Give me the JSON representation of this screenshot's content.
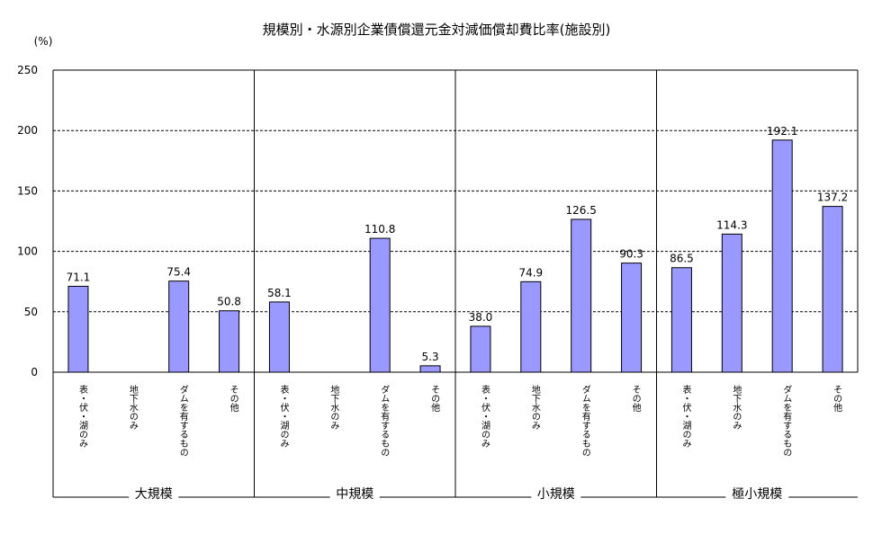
{
  "chart_data": {
    "type": "bar",
    "title": "規模別・水源別企業債償還元金対減価償却費比率(施設別)",
    "ylabel": "(%)",
    "ylim": [
      0,
      250
    ],
    "yticks": [
      "0",
      "50",
      "100",
      "150",
      "200",
      "250"
    ],
    "grid": true,
    "bar_color": "#9999ff",
    "groups": [
      {
        "name": "大規模",
        "categories": [
          "表・伏・湖のみ",
          "地下水のみ",
          "ダムを有するもの",
          "その他"
        ],
        "values": [
          71.1,
          null,
          75.4,
          50.8
        ],
        "labels": [
          "71.1",
          "",
          "75.4",
          "50.8"
        ]
      },
      {
        "name": "中規模",
        "categories": [
          "表・伏・湖のみ",
          "地下水のみ",
          "ダムを有するもの",
          "その他"
        ],
        "values": [
          58.1,
          null,
          110.8,
          5.3
        ],
        "labels": [
          "58.1",
          "",
          "110.8",
          "5.3"
        ]
      },
      {
        "name": "小規模",
        "categories": [
          "表・伏・湖のみ",
          "地下水のみ",
          "ダムを有するもの",
          "その他"
        ],
        "values": [
          38.0,
          74.9,
          126.5,
          90.3
        ],
        "labels": [
          "38.0",
          "74.9",
          "126.5",
          "90.3"
        ]
      },
      {
        "name": "極小規模",
        "categories": [
          "表・伏・湖のみ",
          "地下水のみ",
          "ダムを有するもの",
          "その他"
        ],
        "values": [
          86.5,
          114.3,
          192.1,
          137.2
        ],
        "labels": [
          "86.5",
          "114.3",
          "192.1",
          "137.2"
        ]
      }
    ]
  }
}
